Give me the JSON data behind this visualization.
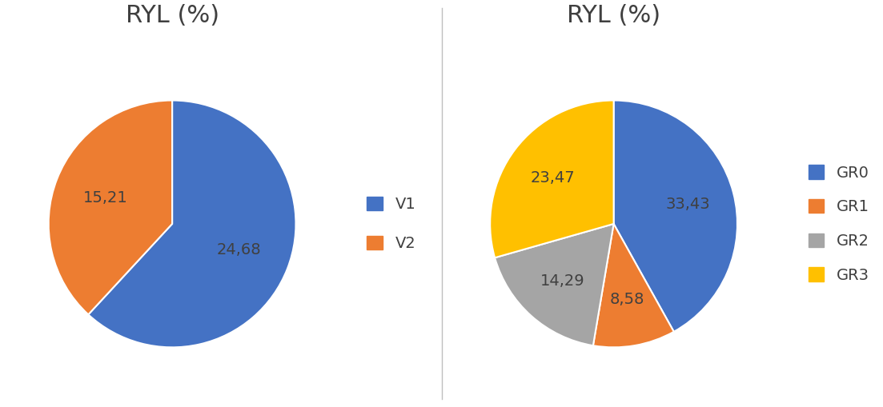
{
  "chart1": {
    "title": "RYL (%)",
    "labels": [
      "V1",
      "V2"
    ],
    "values": [
      24.68,
      15.21
    ],
    "colors": [
      "#4472C4",
      "#ED7D31"
    ],
    "label_texts": [
      "24,68",
      "15,21"
    ]
  },
  "chart2": {
    "title": "RYL (%)",
    "labels": [
      "GR0",
      "GR1",
      "GR2",
      "GR3"
    ],
    "values": [
      33.43,
      8.58,
      14.29,
      23.47
    ],
    "colors": [
      "#4472C4",
      "#ED7D31",
      "#A5A5A5",
      "#FFC000"
    ],
    "label_texts": [
      "33,43",
      "8,58",
      "14,29",
      "23,47"
    ]
  },
  "title_fontsize": 22,
  "label_fontsize": 14,
  "legend_fontsize": 14,
  "background_color": "#FFFFFF",
  "divider_color": "#BFBFBF"
}
